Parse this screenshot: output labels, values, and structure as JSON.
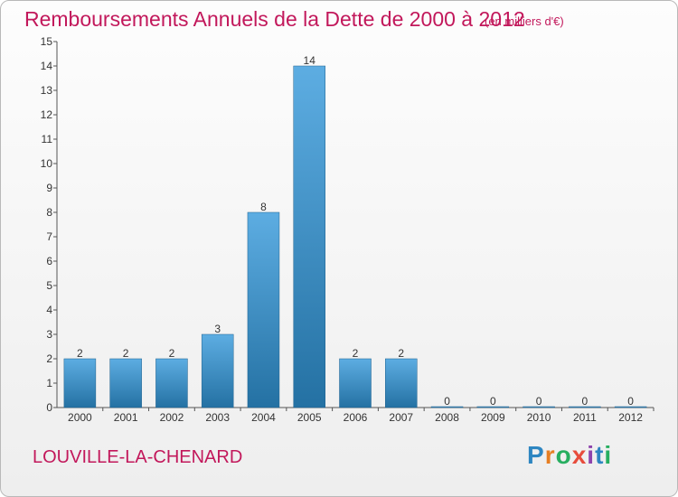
{
  "title": "Remboursements Annuels de la Dette de 2000 à 2012",
  "subtitle": "(en milliers d'€)",
  "commune": "LOUVILLE-LA-CHENARD",
  "logo": {
    "letters": [
      "P",
      "r",
      "o",
      "x",
      "i",
      "t",
      "i"
    ],
    "colors": [
      "#2e86c1",
      "#e67e22",
      "#27ae60",
      "#e74c3c",
      "#8e44ad",
      "#2e86c1",
      "#27ae60"
    ]
  },
  "colors": {
    "bar_top": "#5dade2",
    "bar_bottom": "#2471a3",
    "title": "#c2185b"
  },
  "chart_data": {
    "type": "bar",
    "categories": [
      "2000",
      "2001",
      "2002",
      "2003",
      "2004",
      "2005",
      "2006",
      "2007",
      "2008",
      "2009",
      "2010",
      "2011",
      "2012"
    ],
    "values": [
      2,
      2,
      2,
      3,
      8,
      14,
      2,
      2,
      0,
      0,
      0,
      0,
      0
    ],
    "value_labels": [
      "2",
      "2",
      "2",
      "3",
      "8",
      "14",
      "2",
      "2",
      "0",
      "0",
      "0",
      "0",
      "0"
    ],
    "y_ticks": [
      "0",
      "1",
      "2",
      "3",
      "4",
      "5",
      "6",
      "7",
      "8",
      "9",
      "10",
      "11",
      "12",
      "13",
      "14",
      "15"
    ],
    "ylim": [
      0,
      15
    ],
    "xlabel": "",
    "ylabel": "",
    "grid": false
  }
}
